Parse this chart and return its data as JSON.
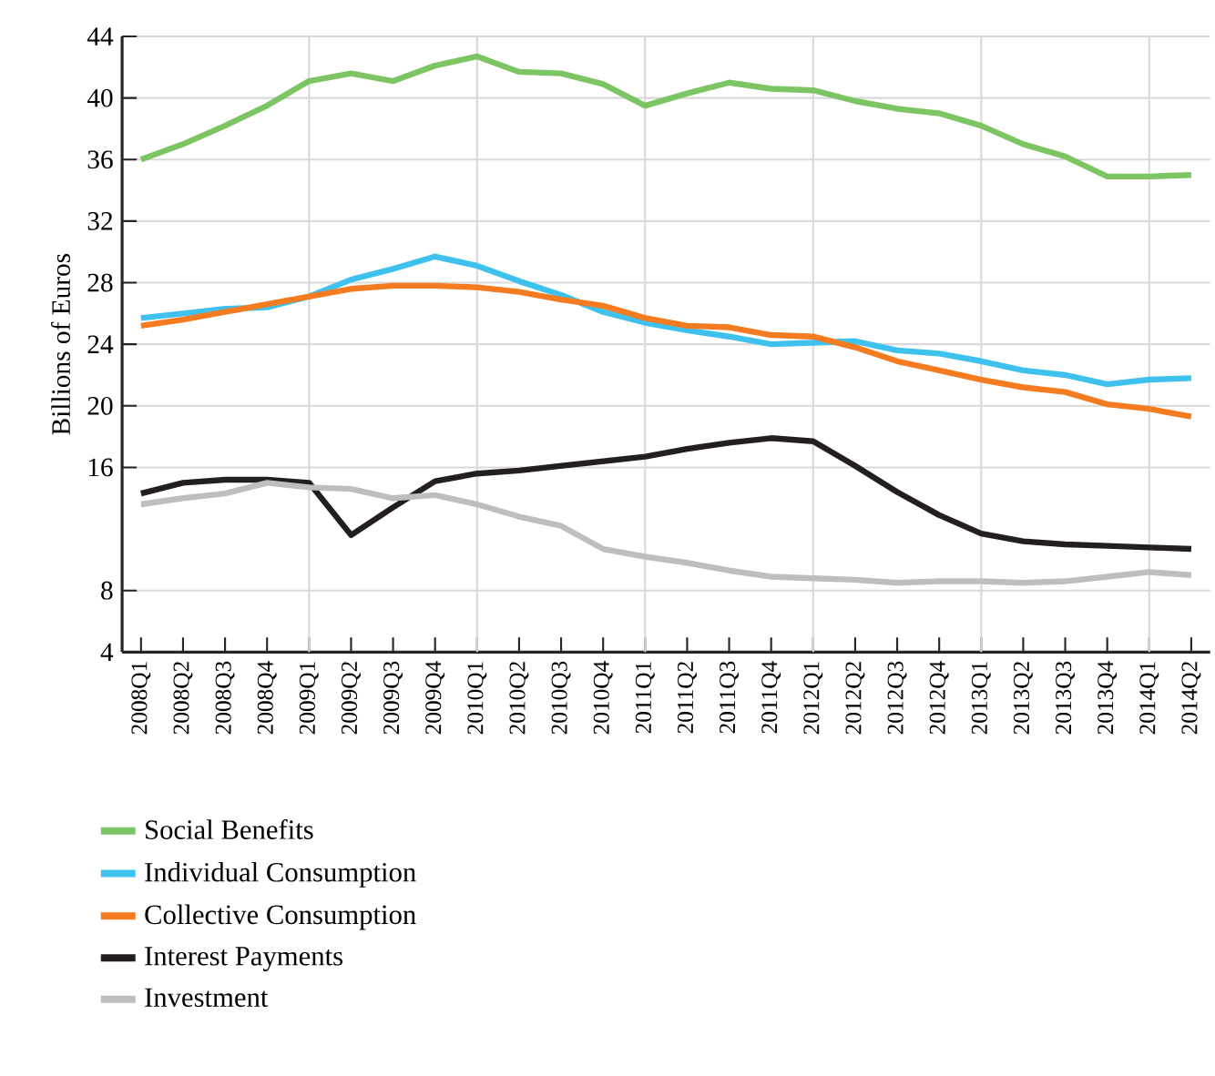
{
  "chart_data": {
    "type": "line",
    "ylabel": "Billions of Euros",
    "categories": [
      "2008Q1",
      "2008Q2",
      "2008Q3",
      "2008Q4",
      "2009Q1",
      "2009Q2",
      "2009Q3",
      "2009Q4",
      "2010Q1",
      "2010Q2",
      "2010Q3",
      "2010Q4",
      "2011Q1",
      "2011Q2",
      "2011Q3",
      "2011Q4",
      "2012Q1",
      "2012Q2",
      "2012Q3",
      "2012Q4",
      "2013Q1",
      "2013Q2",
      "2013Q3",
      "2013Q4",
      "2014Q1",
      "2014Q2"
    ],
    "series": [
      {
        "name": "Social Benefits",
        "color": "#7dc462",
        "values": [
          36.0,
          37.0,
          38.2,
          39.5,
          41.1,
          41.6,
          41.1,
          42.1,
          42.7,
          41.7,
          41.6,
          40.9,
          39.5,
          40.3,
          41.0,
          40.6,
          40.5,
          39.8,
          39.3,
          39.0,
          38.2,
          37.0,
          36.2,
          34.9,
          34.9,
          35.0
        ]
      },
      {
        "name": "Individual Consumption",
        "color": "#3fc1ee",
        "values": [
          25.7,
          26.0,
          26.3,
          26.4,
          27.1,
          28.2,
          28.9,
          29.7,
          29.1,
          28.1,
          27.2,
          26.1,
          25.4,
          24.9,
          24.5,
          24.0,
          24.1,
          24.2,
          23.6,
          23.4,
          22.9,
          22.3,
          22.0,
          21.4,
          21.7,
          21.8
        ]
      },
      {
        "name": "Collective Consumption",
        "color": "#f47b20",
        "values": [
          25.2,
          25.6,
          26.1,
          26.6,
          27.1,
          27.6,
          27.8,
          27.8,
          27.7,
          27.4,
          26.9,
          26.5,
          25.7,
          25.2,
          25.1,
          24.6,
          24.5,
          23.8,
          22.9,
          22.3,
          21.7,
          21.2,
          20.9,
          20.1,
          19.8,
          19.3
        ]
      },
      {
        "name": "Interest Payments",
        "color": "#231f20",
        "values": [
          14.3,
          15.0,
          15.2,
          15.2,
          15.0,
          11.6,
          13.4,
          15.1,
          15.6,
          15.8,
          16.1,
          16.4,
          16.7,
          17.2,
          17.6,
          17.9,
          17.7,
          16.1,
          14.4,
          12.9,
          11.7,
          11.2,
          11.0,
          10.9,
          10.8,
          10.7
        ]
      },
      {
        "name": "Investment",
        "color": "#bcbec0",
        "values": [
          13.6,
          14.0,
          14.3,
          15.0,
          14.7,
          14.6,
          14.0,
          14.2,
          13.6,
          12.8,
          12.2,
          10.7,
          10.2,
          9.8,
          9.3,
          8.9,
          8.8,
          8.7,
          8.5,
          8.6,
          8.6,
          8.5,
          8.6,
          8.9,
          9.2,
          9.0
        ]
      }
    ],
    "ylim": [
      4,
      44
    ],
    "yticks": [
      4,
      8,
      16,
      20,
      24,
      28,
      32,
      36,
      40,
      44
    ],
    "grid": true,
    "legend": "bottom",
    "line_style": "solid",
    "marker": "none"
  }
}
